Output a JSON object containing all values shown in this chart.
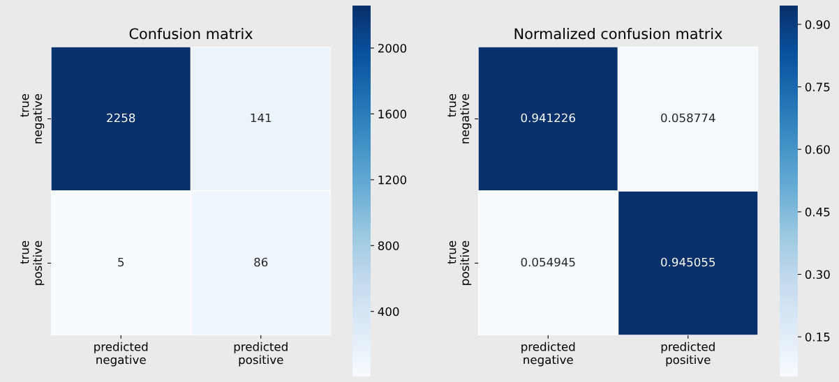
{
  "chart_data": [
    {
      "type": "heatmap",
      "title": "Confusion matrix",
      "categories": [
        "predicted\nnegative",
        "predicted\npositive"
      ],
      "y_categories": [
        "true\nnegative",
        "true\npositive"
      ],
      "cells": [
        [
          2258,
          141
        ],
        [
          5,
          86
        ]
      ],
      "data_labels": true,
      "clim": [
        5,
        2258
      ],
      "cticks": [
        400,
        800,
        1200,
        1600,
        2000
      ]
    },
    {
      "type": "heatmap",
      "title": "Normalized confusion matrix",
      "categories": [
        "predicted\nnegative",
        "predicted\npositive"
      ],
      "y_categories": [
        "true\nnegative",
        "true\npositive"
      ],
      "cells": [
        [
          0.941226,
          0.058774
        ],
        [
          0.054945,
          0.945055
        ]
      ],
      "data_labels": true,
      "clim": [
        0.054945,
        0.945055
      ],
      "cticks": [
        {
          "value": 0.15,
          "label": "0.15"
        },
        {
          "value": 0.3,
          "label": "0.30"
        },
        {
          "value": 0.45,
          "label": "0.45"
        },
        {
          "value": 0.6,
          "label": "0.60"
        },
        {
          "value": 0.75,
          "label": "0.75"
        },
        {
          "value": 0.9,
          "label": "0.90"
        }
      ]
    }
  ]
}
